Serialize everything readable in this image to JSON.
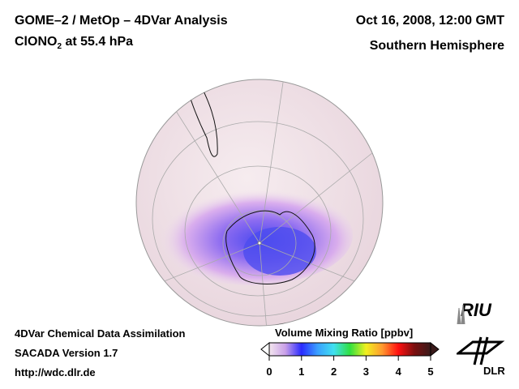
{
  "header": {
    "title": "GOME–2 / MetOp – 4DVar Analysis",
    "species_prefix": "ClONO",
    "species_sub": "2",
    "species_suffix": " at 55.4 hPa",
    "date": "Oct 16, 2008, 12:00 GMT",
    "region": "Southern Hemisphere"
  },
  "footer": {
    "line1": "4DVar Chemical Data Assimilation",
    "line2": "SACADA Version 1.7",
    "line3": "http://wdc.dlr.de"
  },
  "colorbar": {
    "title": "Volume Mixing Ratio [ppbv]",
    "ticks": [
      "0",
      "1",
      "2",
      "3",
      "4",
      "5"
    ],
    "range": [
      0,
      5
    ],
    "colors": [
      "#f3e6ee",
      "#c9a0e8",
      "#2a2aff",
      "#3aa0ff",
      "#40e0f0",
      "#30e040",
      "#f0f020",
      "#ff9a30",
      "#ff1010",
      "#7a0f0f",
      "#3a1a1a"
    ]
  },
  "logos": {
    "riu": "RIU",
    "dlr": "DLR"
  },
  "map": {
    "ocean": "#f2e4e8",
    "low": "#d9a8ec",
    "mid": "#9a6cf0",
    "high": "#5050f0"
  }
}
